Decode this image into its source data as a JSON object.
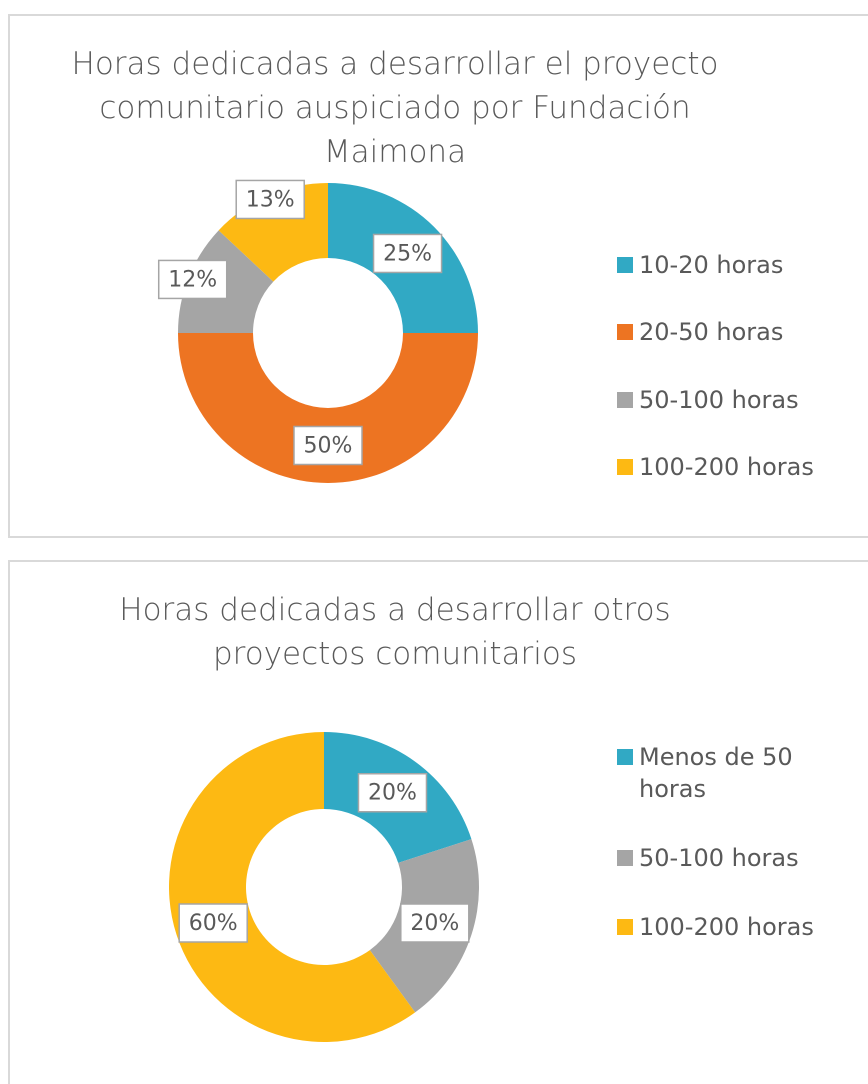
{
  "chart_data": [
    {
      "type": "donut",
      "title": "Horas dedicadas a desarrollar el proyecto comunitario auspiciado por Fundación Maimona",
      "categories": [
        "10-20 horas",
        "20-50 horas",
        "50-100 horas",
        "100-200 horas"
      ],
      "values": [
        25,
        50,
        12,
        13
      ],
      "value_labels": [
        "25%",
        "50%",
        "12%",
        "13%"
      ],
      "colors": [
        "#31a9c4",
        "#ed7422",
        "#a5a5a5",
        "#fdb913"
      ],
      "legend": "right"
    },
    {
      "type": "donut",
      "title": "Horas dedicadas a desarrollar otros proyectos comunitarios",
      "categories": [
        "Menos de 50 horas",
        "50-100 horas",
        "100-200 horas"
      ],
      "values": [
        20,
        20,
        60
      ],
      "value_labels": [
        "20%",
        "20%",
        "60%"
      ],
      "colors": [
        "#31a9c4",
        "#a5a5a5",
        "#fdb913"
      ],
      "legend": "right"
    }
  ]
}
